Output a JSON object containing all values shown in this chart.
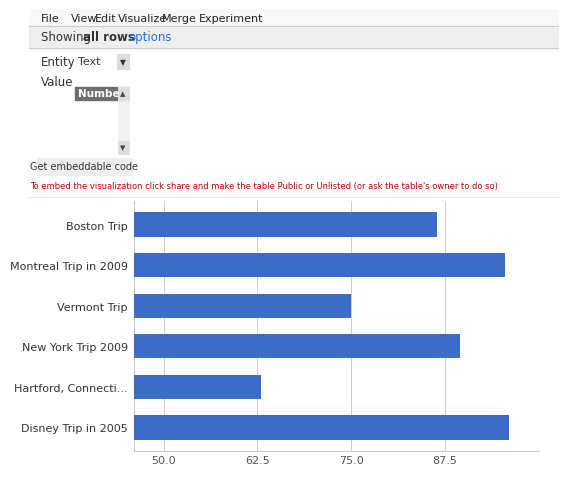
{
  "categories": [
    "Boston Trip",
    "Montreal Trip in 2009",
    "Vermont Trip",
    "New York Trip 2009",
    "Hartford, Connecti...",
    "Disney Trip in 2005"
  ],
  "values": [
    86.5,
    95.5,
    75.0,
    89.5,
    63.0,
    96.0
  ],
  "bar_color": "#3a6cc8",
  "xlim": [
    46.0,
    100.0
  ],
  "xticks": [
    50.0,
    62.5,
    75.0,
    87.5
  ],
  "xtick_labels": [
    "50.0",
    "62.5",
    "75.0",
    "87.5"
  ],
  "menu_items": [
    "File",
    "View",
    "Edit",
    "Visualize",
    "Merge",
    "Experiment"
  ],
  "showing_text": "Showing ",
  "all_rows_bold": "all rows",
  "options_text": "options",
  "entity_label": "Entity",
  "entity_value": "Text",
  "value_label": "Value",
  "value_selected": "Number",
  "button_text": "Get embeddable code",
  "embed_text": "To embed the visualization click share and make the table Public or Unlisted (or ask the table's owner to do so)",
  "bg_color": "#ffffff",
  "menu_bg": "#ffffff",
  "toolbar_bg": "#eeeeee",
  "grid_color": "#cccccc",
  "text_color": "#333333",
  "link_color": "#1a73e8",
  "embed_color": "#cc0000"
}
